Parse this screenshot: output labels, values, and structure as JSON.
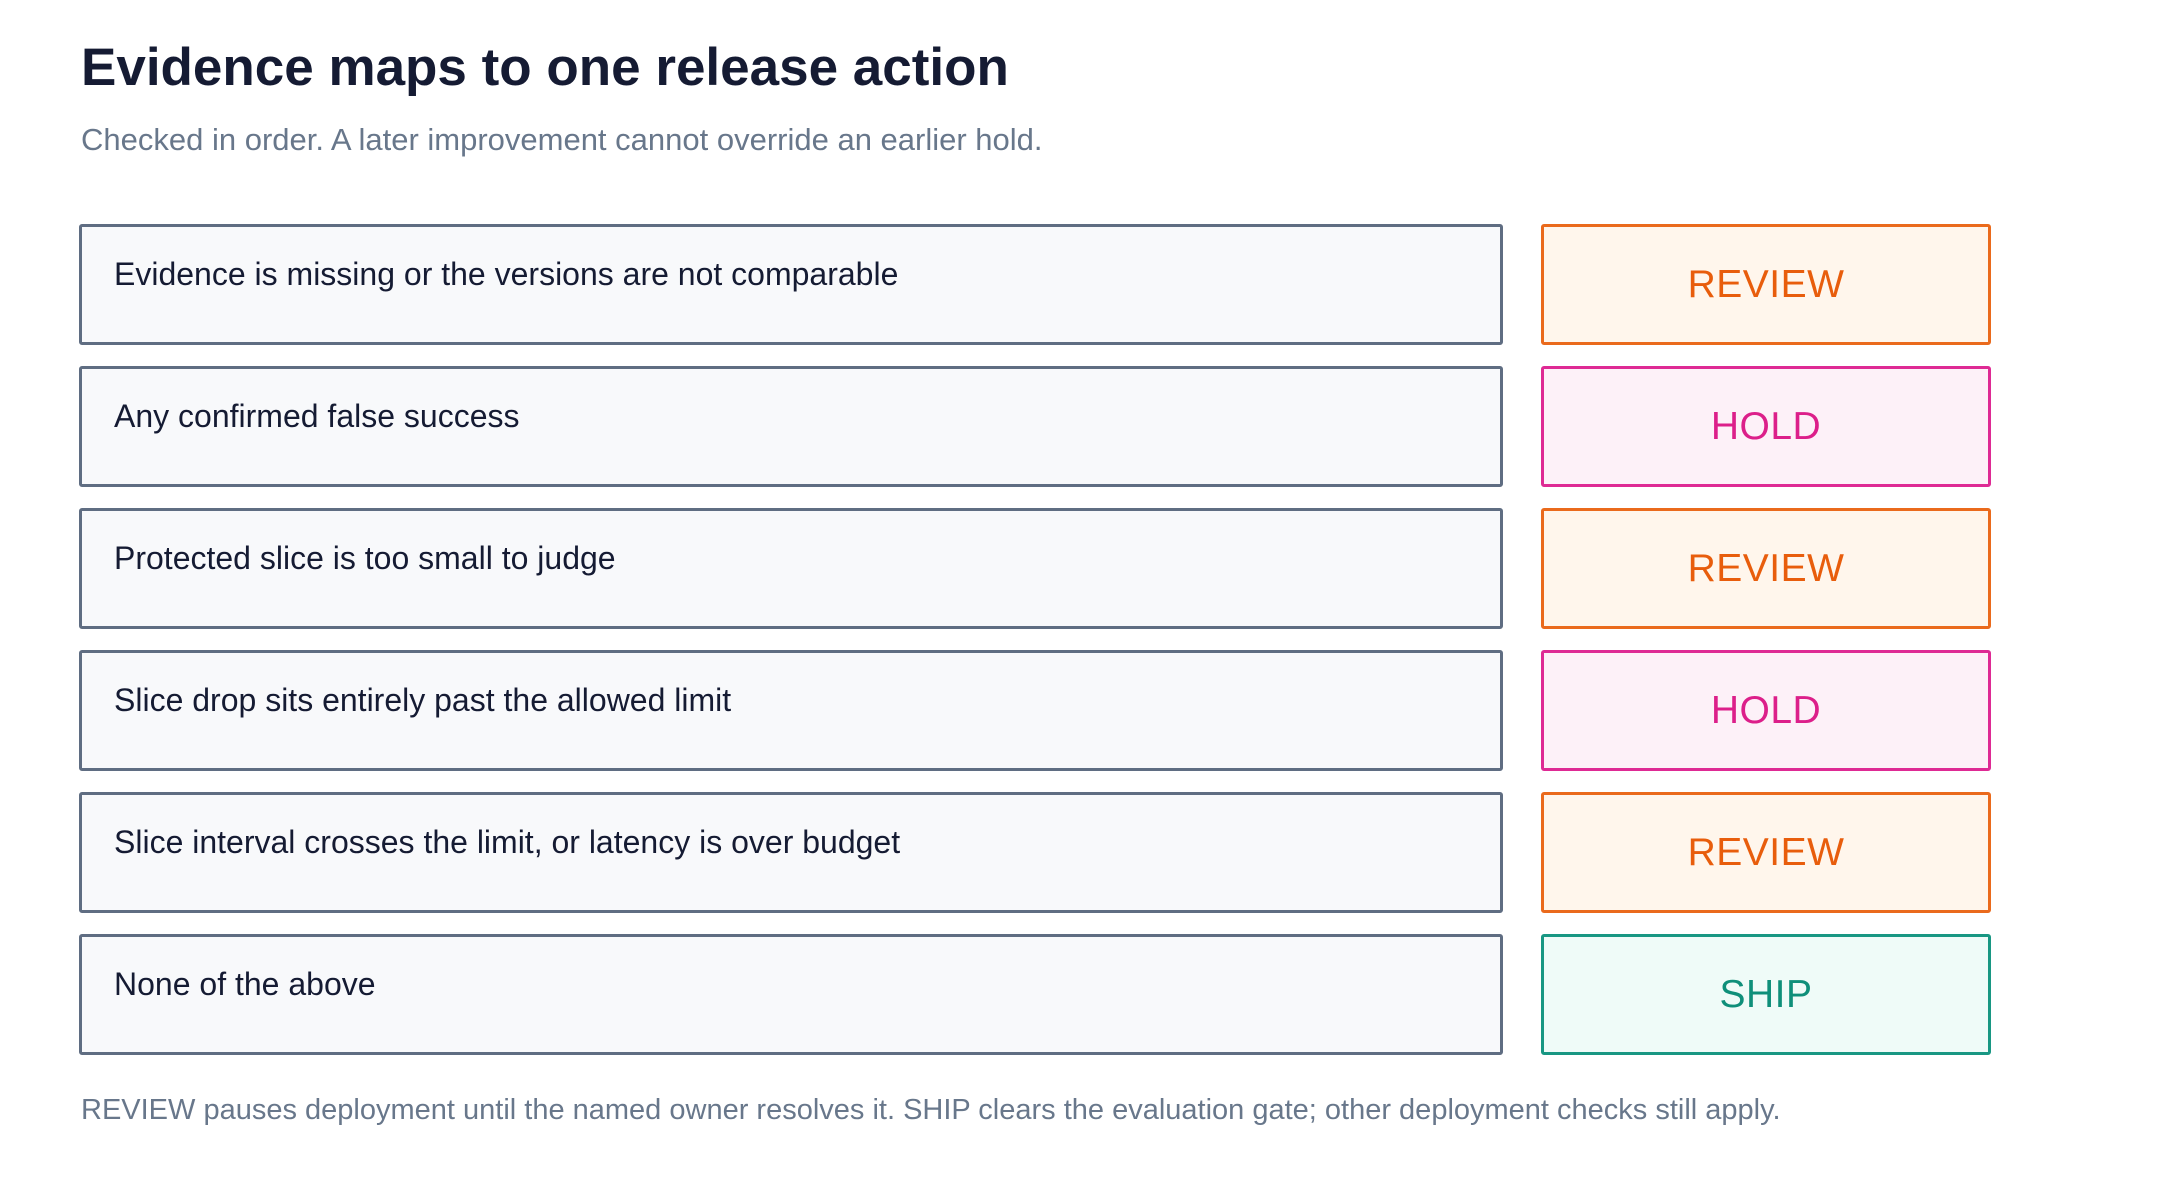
{
  "header": {
    "title": "Evidence maps to one release action",
    "subtitle": "Checked in order. A later improvement cannot override an earlier hold."
  },
  "action_styles": {
    "REVIEW": {
      "text": "#e85d0c",
      "border": "#ea6a1c",
      "fill": "#fff6ec"
    },
    "HOLD": {
      "text": "#dc1f8a",
      "border": "#de2a94",
      "fill": "#fdf1f8"
    },
    "SHIP": {
      "text": "#0f8f7a",
      "border": "#189783",
      "fill": "#effbf8"
    }
  },
  "rules": [
    {
      "condition": "Evidence is missing or the versions are not comparable",
      "action": "REVIEW"
    },
    {
      "condition": "Any confirmed false success",
      "action": "HOLD"
    },
    {
      "condition": "Protected slice is too small to judge",
      "action": "REVIEW"
    },
    {
      "condition": "Slice drop sits entirely past the allowed limit",
      "action": "HOLD"
    },
    {
      "condition": "Slice interval crosses the limit, or latency is over budget",
      "action": "REVIEW"
    },
    {
      "condition": "None of the above",
      "action": "SHIP"
    }
  ],
  "footer": {
    "note": "REVIEW pauses deployment until the named owner resolves it. SHIP clears the evaluation gate; other deployment checks still apply."
  }
}
